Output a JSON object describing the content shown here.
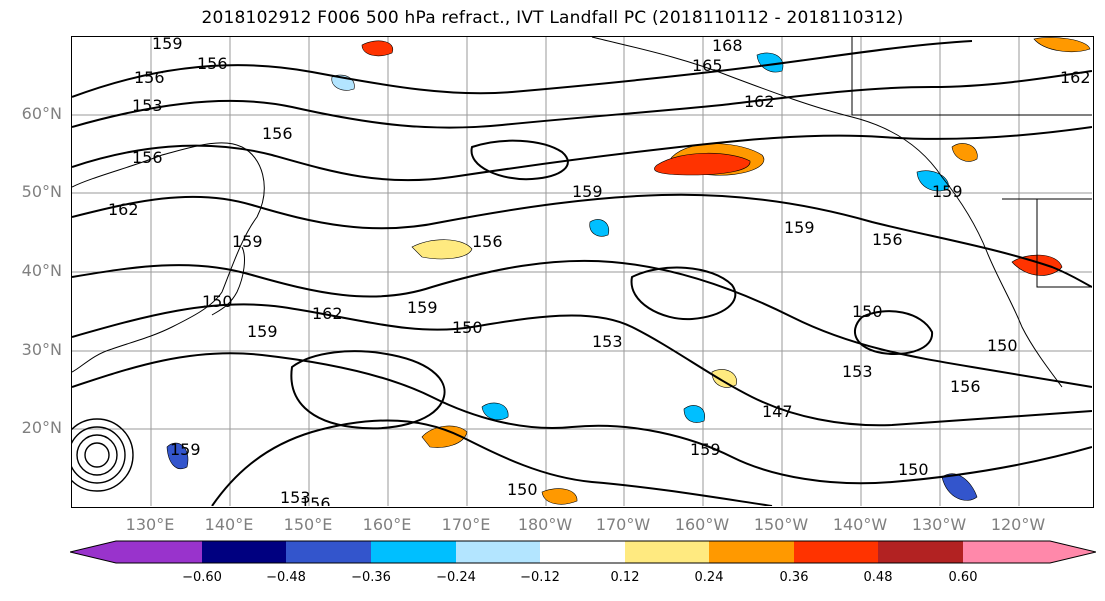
{
  "title": "2018102912 F006 500 hPa refract., IVT Landfall PC (2018110112 - 2018110312)",
  "map": {
    "lat_labels": [
      "60°N",
      "50°N",
      "40°N",
      "30°N",
      "20°N"
    ],
    "lon_labels": [
      "130°E",
      "140°E",
      "150°E",
      "160°E",
      "170°E",
      "180°W",
      "170°W",
      "160°W",
      "150°W",
      "140°W",
      "130°W",
      "120°W"
    ],
    "grid": true,
    "contour_color": "#000000",
    "grid_color": "#999999",
    "coast_color": "#000000",
    "contour_labels": [
      {
        "text": "159"
      },
      {
        "text": "156"
      },
      {
        "text": "153"
      },
      {
        "text": "156"
      },
      {
        "text": "156"
      },
      {
        "text": "162"
      },
      {
        "text": "159"
      },
      {
        "text": "156"
      },
      {
        "text": "162"
      },
      {
        "text": "159"
      },
      {
        "text": "150"
      },
      {
        "text": "159"
      },
      {
        "text": "168"
      },
      {
        "text": "165"
      },
      {
        "text": "162"
      },
      {
        "text": "159"
      },
      {
        "text": "156"
      },
      {
        "text": "159"
      },
      {
        "text": "156"
      },
      {
        "text": "150"
      },
      {
        "text": "150"
      },
      {
        "text": "153"
      },
      {
        "text": "156"
      },
      {
        "text": "153"
      },
      {
        "text": "147"
      },
      {
        "text": "159"
      },
      {
        "text": "159"
      },
      {
        "text": "156"
      },
      {
        "text": "153"
      },
      {
        "text": "150"
      },
      {
        "text": "162"
      },
      {
        "text": "150"
      },
      {
        "text": "150"
      },
      {
        "text": "159"
      }
    ],
    "fill_regions": [
      {
        "color": "#ff9900"
      },
      {
        "color": "#ff3300"
      },
      {
        "color": "#ffea80"
      },
      {
        "color": "#00bfff"
      },
      {
        "color": "#b3e5ff"
      },
      {
        "color": "#3355cc"
      },
      {
        "color": "#ff3300"
      },
      {
        "color": "#ff9900"
      },
      {
        "color": "#00bfff"
      },
      {
        "color": "#ff9900"
      },
      {
        "color": "#ffea80"
      },
      {
        "color": "#00bfff"
      },
      {
        "color": "#ff3300"
      },
      {
        "color": "#ff9900"
      },
      {
        "color": "#00bfff"
      },
      {
        "color": "#3355cc"
      },
      {
        "color": "#ff9900"
      },
      {
        "color": "#00bfff"
      }
    ]
  },
  "colorbar": {
    "colors": [
      "#9933cc",
      "#000080",
      "#3355cc",
      "#00bfff",
      "#b3e5ff",
      "#ffffff",
      "#ffea80",
      "#ff9900",
      "#ff3300",
      "#b22222",
      "#ff88aa"
    ],
    "tick_labels": [
      "−0.60",
      "−0.48",
      "−0.36",
      "−0.24",
      "−0.12",
      "0.12",
      "0.24",
      "0.36",
      "0.48",
      "0.60"
    ],
    "extend": "both"
  }
}
